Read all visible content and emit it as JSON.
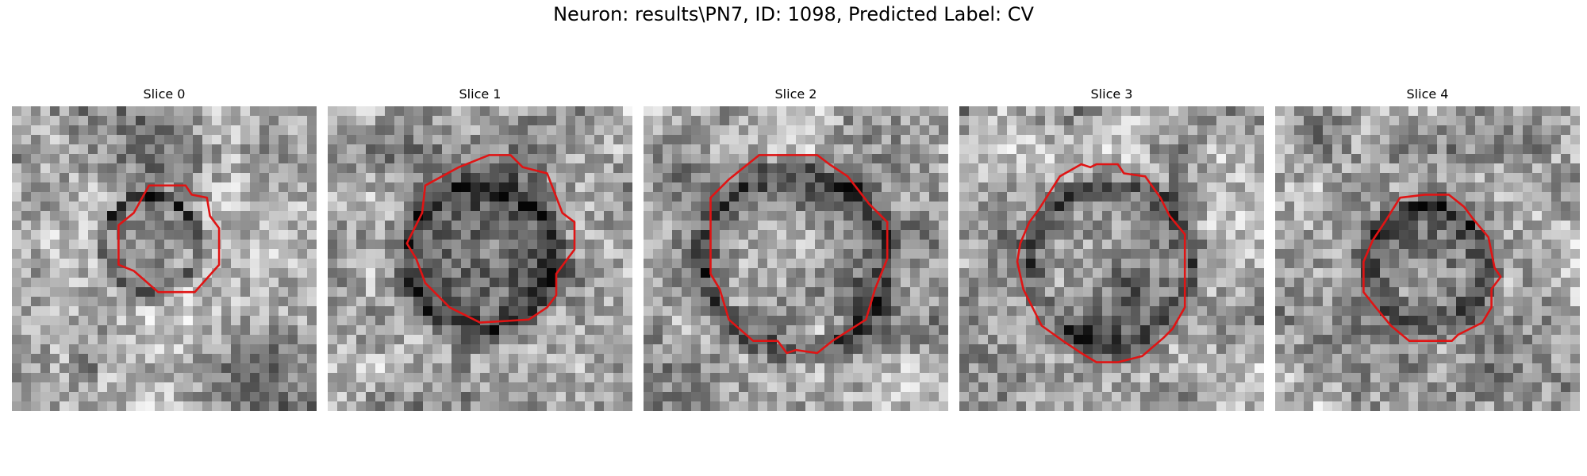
{
  "figure": {
    "title": "Neuron: results\\PN7, ID: 1098, Predicted Label: CV"
  },
  "slices": [
    {
      "title": "Slice 0",
      "description_icon": "grayscale-em-patch",
      "contour_color": "#e01414"
    },
    {
      "title": "Slice 1",
      "description_icon": "grayscale-em-patch",
      "contour_color": "#e01414"
    },
    {
      "title": "Slice 2",
      "description_icon": "grayscale-em-patch",
      "contour_color": "#e01414"
    },
    {
      "title": "Slice 3",
      "description_icon": "grayscale-em-patch",
      "contour_color": "#e01414"
    },
    {
      "title": "Slice 4",
      "description_icon": "grayscale-em-patch",
      "contour_color": "#e01414"
    }
  ]
}
